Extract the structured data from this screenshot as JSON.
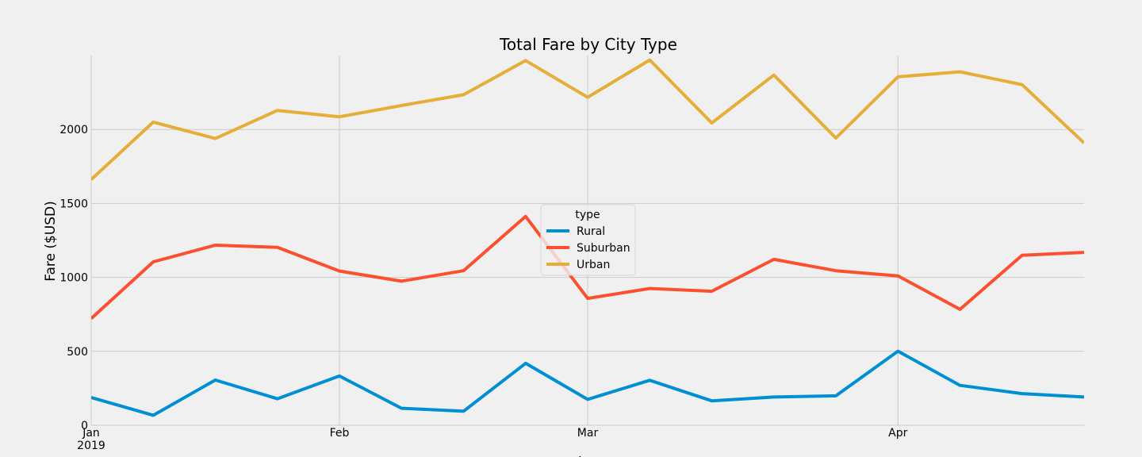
{
  "chart_data": {
    "type": "line",
    "title": "Total Fare by City Type",
    "xlabel": "date",
    "ylabel": "Fare ($USD)",
    "x": [
      "2019-01-06",
      "2019-01-13",
      "2019-01-20",
      "2019-01-27",
      "2019-02-03",
      "2019-02-10",
      "2019-02-17",
      "2019-02-24",
      "2019-03-03",
      "2019-03-10",
      "2019-03-17",
      "2019-03-24",
      "2019-03-31",
      "2019-04-07",
      "2019-04-14",
      "2019-04-21",
      "2019-04-28"
    ],
    "xlim": [
      "2019-01-06",
      "2019-04-28"
    ],
    "ylim": [
      0,
      2500
    ],
    "x_ticks": [
      {
        "date": "2019-01-06",
        "label": "Jan",
        "sublabel": "2019"
      },
      {
        "date": "2019-02-03",
        "label": "Feb",
        "sublabel": ""
      },
      {
        "date": "2019-03-03",
        "label": "Mar",
        "sublabel": ""
      },
      {
        "date": "2019-04-07",
        "label": "Apr",
        "sublabel": ""
      }
    ],
    "y_ticks": [
      0,
      500,
      1000,
      1500,
      2000
    ],
    "grid": true,
    "legend": {
      "title": "type",
      "placement": "center"
    },
    "series": [
      {
        "name": "Rural",
        "color": "#008fd5",
        "values": [
          187.92,
          67.65,
          306.0,
          179.0,
          333.0,
          115.0,
          95.0,
          419.0,
          175.0,
          304.0,
          165.0,
          191.0,
          199.0,
          501.0,
          270.0,
          214.0,
          191.0
        ]
      },
      {
        "name": "Suburban",
        "color": "#fc4f30",
        "values": [
          721.6,
          1105.0,
          1218.0,
          1203.0,
          1043.0,
          974.0,
          1045.0,
          1412.0,
          858.0,
          925.0,
          906.0,
          1122.0,
          1045.0,
          1010.0,
          784.0,
          1149.0,
          1169.0
        ]
      },
      {
        "name": "Urban",
        "color": "#e5ae38",
        "values": [
          1661.7,
          2050.0,
          1939.0,
          2129.0,
          2086.0,
          2162.0,
          2235.0,
          2466.0,
          2218.0,
          2470.0,
          2044.0,
          2368.0,
          1942.0,
          2356.0,
          2390.0,
          2303.0,
          1909.0
        ]
      }
    ]
  }
}
